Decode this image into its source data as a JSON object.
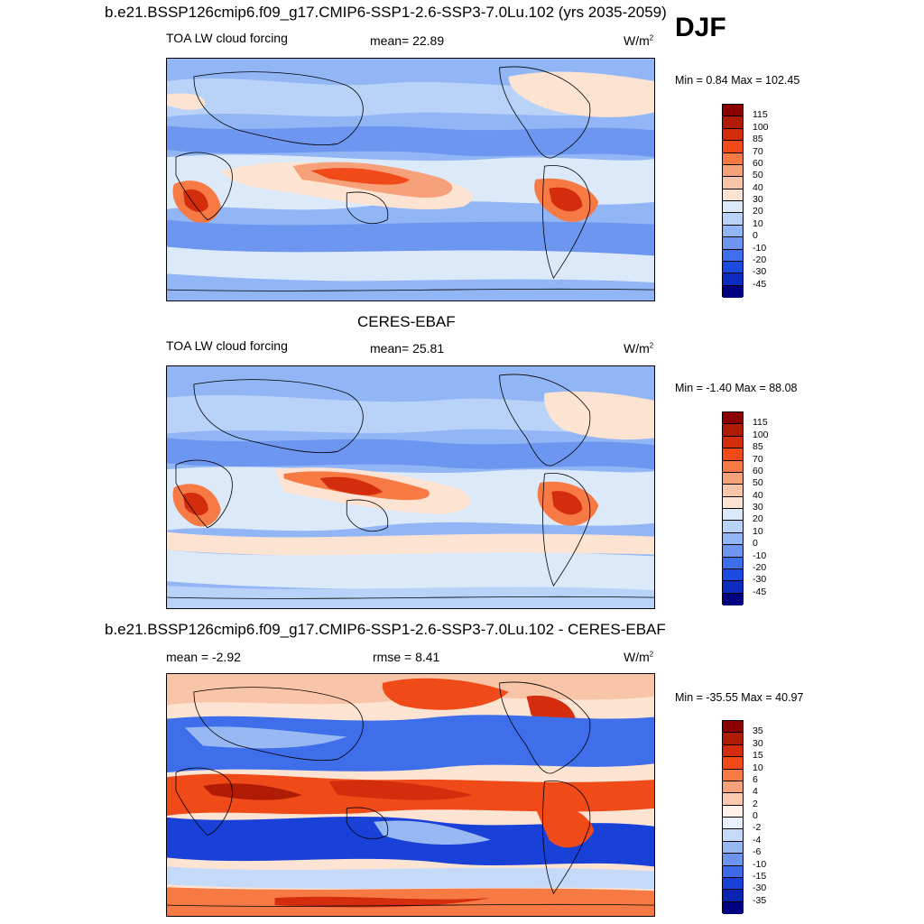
{
  "season": "DJF",
  "panels": [
    {
      "title": "b.e21.BSSP126cmip6.f09_g17.CMIP6-SSP1-2.6-SSP3-7.0Lu.102 (yrs 2035-2059)",
      "variable": "TOA LW cloud forcing",
      "stat_left": "mean=  22.89",
      "units": "W/m",
      "units_sup": "2",
      "minmax": "Min =   0.84 Max = 102.45",
      "ticks": [
        "115",
        "100",
        "85",
        "70",
        "60",
        "50",
        "40",
        "30",
        "20",
        "10",
        "0",
        "-10",
        "-20",
        "-30",
        "-45"
      ]
    },
    {
      "title": "CERES-EBAF",
      "variable": "TOA LW cloud forcing",
      "stat_left": "mean=  25.81",
      "units": "W/m",
      "units_sup": "2",
      "minmax": "Min =  -1.40 Max =  88.08",
      "ticks": [
        "115",
        "100",
        "85",
        "70",
        "60",
        "50",
        "40",
        "30",
        "20",
        "10",
        "0",
        "-10",
        "-20",
        "-30",
        "-45"
      ]
    },
    {
      "title": "b.e21.BSSP126cmip6.f09_g17.CMIP6-SSP1-2.6-SSP3-7.0Lu.102 - CERES-EBAF",
      "stat_left": "mean =  -2.92",
      "stat_mid": "rmse =   8.41",
      "units": "W/m",
      "units_sup": "2",
      "minmax": "Min = -35.55 Max =  40.97",
      "ticks": [
        "35",
        "30",
        "15",
        "10",
        "6",
        "4",
        "2",
        "0",
        "-2",
        "-4",
        "-6",
        "-10",
        "-15",
        "-30",
        "-35"
      ]
    }
  ],
  "colors": {
    "scale16": [
      "#8b0000",
      "#b01b06",
      "#d42d0e",
      "#ef4a18",
      "#f77a45",
      "#f7a17a",
      "#f9c5a8",
      "#fde3d2",
      "#dce9f9",
      "#b9d3f8",
      "#92b6f5",
      "#6c96f0",
      "#3f6eea",
      "#1a4ae0",
      "#0b2cbe",
      "#000080"
    ],
    "diff16": [
      "#8b0000",
      "#b01b06",
      "#d42d0e",
      "#ef4a18",
      "#f77a45",
      "#f7a17a",
      "#fcc8ae",
      "#fff1e8",
      "#e8f0fc",
      "#c5d9f8",
      "#98b8f3",
      "#6b94ee",
      "#3d6ae6",
      "#1941d8",
      "#0a24b0",
      "#000080"
    ]
  }
}
